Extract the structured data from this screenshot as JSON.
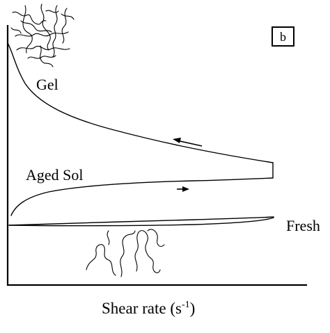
{
  "figure": {
    "panel_label": "b",
    "x_axis_label": "Shear rate (s",
    "x_axis_label_sup": "-1",
    "x_axis_label_end": ")",
    "labels": {
      "gel": "Gel",
      "aged_sol": "Aged Sol",
      "fresh": "Fresh"
    }
  }
}
